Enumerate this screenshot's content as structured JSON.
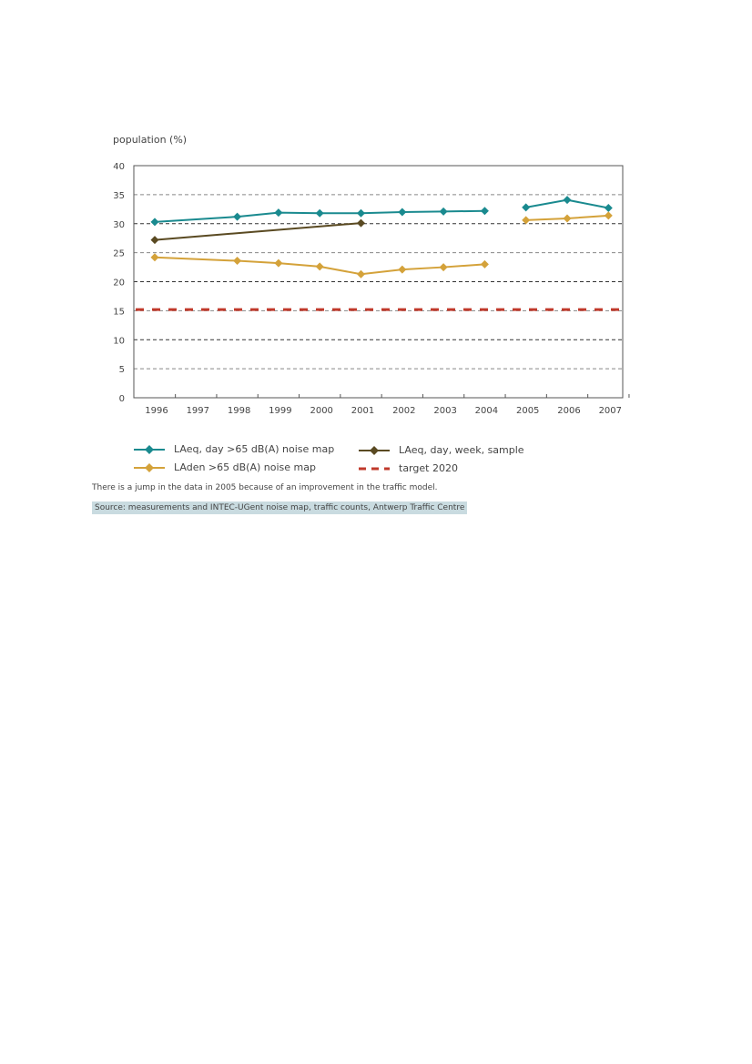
{
  "chart_data": {
    "type": "line",
    "ylabel": "population (%)",
    "ylim": [
      0,
      40
    ],
    "yticks": [
      "0",
      "5",
      "10",
      "15",
      "20",
      "25",
      "30",
      "35",
      "40"
    ],
    "categories": [
      "1996",
      "1997",
      "1998",
      "1999",
      "2000",
      "2001",
      "2002",
      "2003",
      "2004",
      "2005",
      "2006",
      "2007"
    ],
    "grid": "horizontal dashed",
    "series": [
      {
        "name": "LAeq, day >65 dB(A) noise map",
        "color": "#1a8a8f",
        "marker": "diamond",
        "segments": [
          [
            [
              "1996",
              30.3
            ],
            [
              "1998",
              31.2
            ],
            [
              "1999",
              31.9
            ],
            [
              "2000",
              31.8
            ],
            [
              "2001",
              31.8
            ],
            [
              "2002",
              32.0
            ],
            [
              "2003",
              32.1
            ],
            [
              "2004",
              32.2
            ]
          ],
          [
            [
              "2005",
              32.8
            ],
            [
              "2006",
              34.1
            ],
            [
              "2007",
              32.7
            ]
          ]
        ]
      },
      {
        "name": "LAeq, day, week, sample",
        "color": "#5a4a22",
        "marker": "diamond",
        "segments": [
          [
            [
              "1996",
              27.2
            ],
            [
              "2001",
              30.1
            ]
          ]
        ]
      },
      {
        "name": "LAden >65 dB(A) noise map",
        "color": "#d4a23a",
        "marker": "diamond",
        "segments": [
          [
            [
              "1996",
              24.2
            ],
            [
              "1998",
              23.6
            ],
            [
              "1999",
              23.2
            ],
            [
              "2000",
              22.6
            ],
            [
              "2001",
              21.3
            ],
            [
              "2002",
              22.1
            ],
            [
              "2003",
              22.5
            ],
            [
              "2004",
              23.0
            ]
          ],
          [
            [
              "2005",
              30.6
            ],
            [
              "2006",
              30.9
            ],
            [
              "2007",
              31.4
            ]
          ]
        ]
      },
      {
        "name": "target 2020",
        "color": "#c0392b",
        "marker": "none",
        "style": "dashed",
        "value": 15.2
      }
    ]
  },
  "note": "There is a jump in the data in 2005 because of an improvement in the traffic model.",
  "source": "Source: measurements and INTEC-UGent noise map, traffic counts, Antwerp Traffic Centre"
}
